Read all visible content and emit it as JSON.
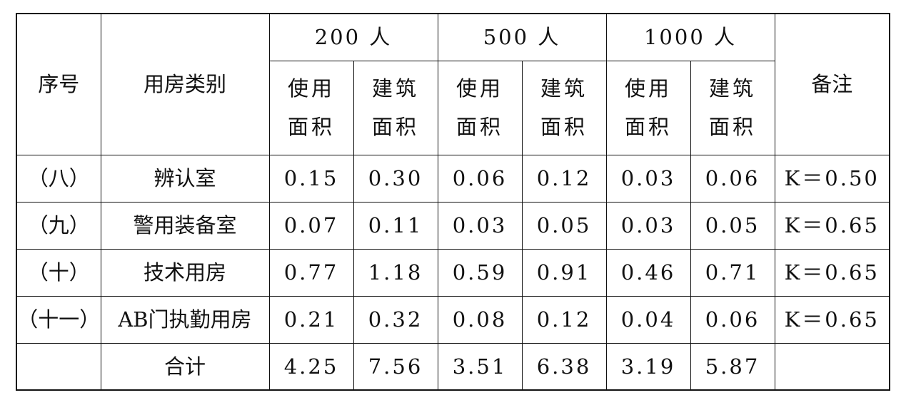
{
  "header": {
    "index": "序号",
    "category": "用房类别",
    "groups": [
      "200 人",
      "500 人",
      "1000 人"
    ],
    "subheads": [
      "使用\n面积",
      "建筑\n面积",
      "使用\n面积",
      "建筑\n面积",
      "使用\n面积",
      "建筑\n面积"
    ],
    "note": "备注"
  },
  "rows": [
    [
      "（八）",
      "辨认室",
      "0.15",
      "0.30",
      "0.06",
      "0.12",
      "0.03",
      "0.06",
      "K＝0.50"
    ],
    [
      "（九）",
      "警用装备室",
      "0.07",
      "0.11",
      "0.03",
      "0.05",
      "0.03",
      "0.05",
      "K＝0.65"
    ],
    [
      "（十）",
      "技术用房",
      "0.77",
      "1.18",
      "0.59",
      "0.91",
      "0.46",
      "0.71",
      "K＝0.65"
    ],
    [
      "（十一）",
      "AB门执勤用房",
      "0.21",
      "0.32",
      "0.08",
      "0.12",
      "0.04",
      "0.06",
      "K＝0.65"
    ]
  ],
  "total": {
    "label": "合计",
    "values": [
      "4.25",
      "7.56",
      "3.51",
      "6.38",
      "3.19",
      "5.87"
    ]
  }
}
